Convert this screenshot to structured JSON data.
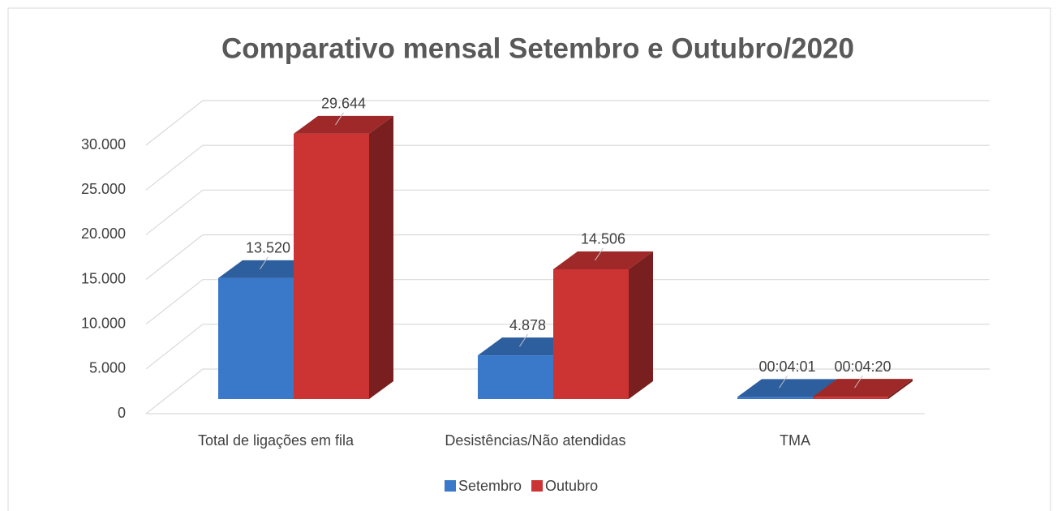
{
  "chart_data": {
    "type": "bar3d",
    "title": "Comparativo mensal  Setembro e Outubro/2020",
    "categories": [
      "Total de ligações em fila",
      "Desistências/Não atendidas",
      "TMA"
    ],
    "series": [
      {
        "name": "Setembro",
        "color": "#3a78c9",
        "values": [
          13520,
          4878,
          241
        ],
        "value_labels": [
          "13.520",
          "4.878",
          "00:04:01"
        ]
      },
      {
        "name": "Outubro",
        "color": "#cc3434",
        "values": [
          29644,
          14506,
          260
        ],
        "value_labels": [
          "29.644",
          "14.506",
          "00:04:20"
        ]
      }
    ],
    "ylim": [
      0,
      30000
    ],
    "yticks": [
      0,
      {
        "value": 5000,
        "label": "5.000"
      },
      {
        "value": 10000,
        "label": "10.000"
      },
      {
        "value": 15000,
        "label": "15.000"
      },
      {
        "value": 20000,
        "label": "20.000"
      },
      {
        "value": 25000,
        "label": "25.000"
      },
      {
        "value": 30000,
        "label": "30.000"
      }
    ],
    "grid": true,
    "legend": "bottom"
  }
}
